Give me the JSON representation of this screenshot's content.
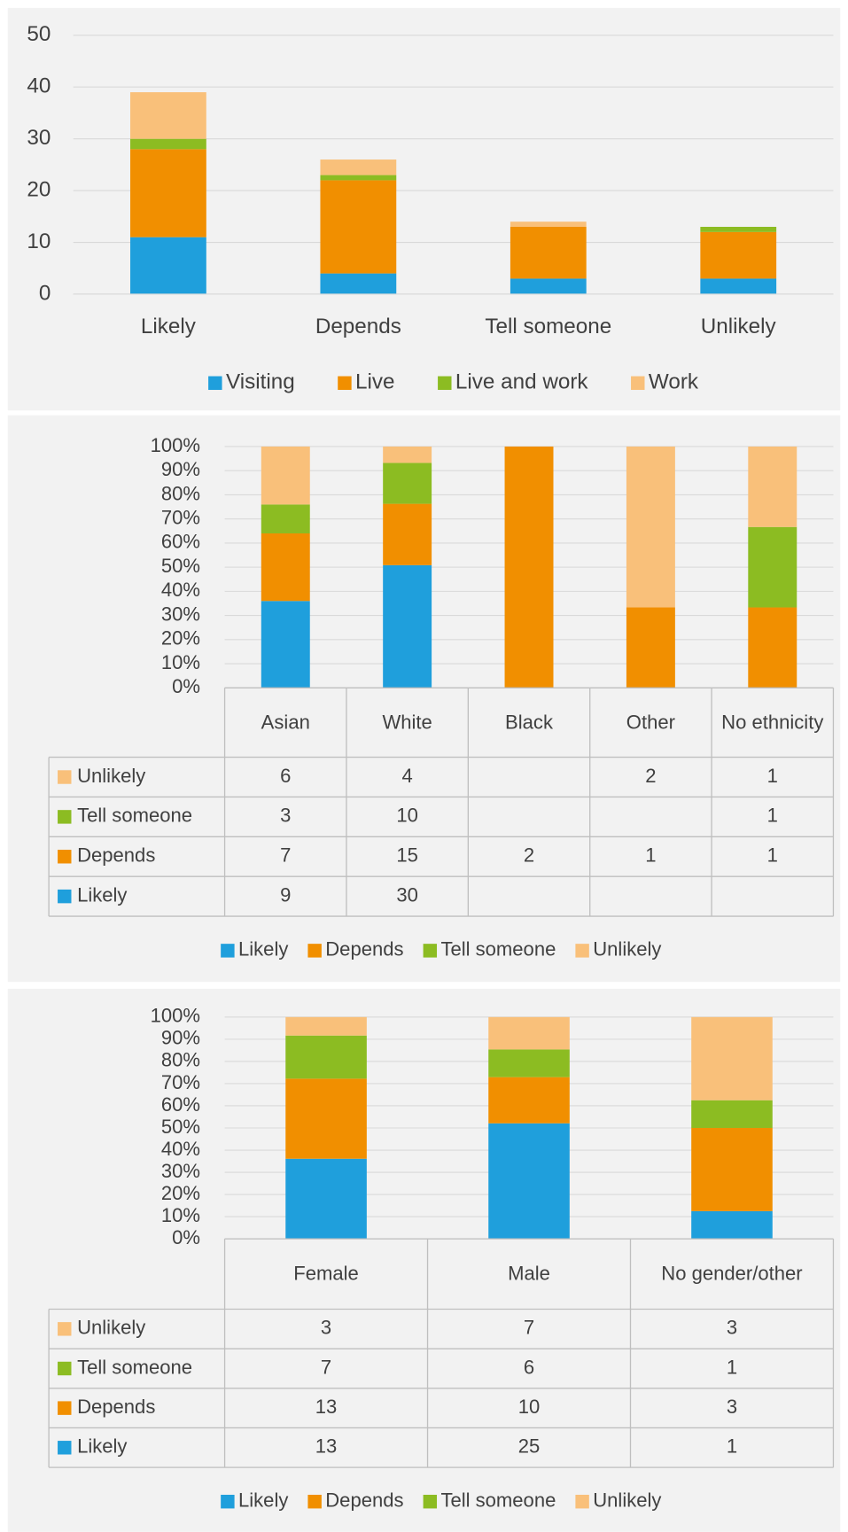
{
  "chart_data": [
    {
      "type": "bar",
      "stacked": "stacked",
      "categories": [
        "Likely",
        "Depends",
        "Tell someone",
        "Unlikely"
      ],
      "series": [
        {
          "name": "Visiting",
          "color": "#1f9fdc",
          "values": [
            11,
            4,
            3,
            3
          ]
        },
        {
          "name": "Live",
          "color": "#f18f00",
          "values": [
            17,
            18,
            10,
            9
          ]
        },
        {
          "name": "Live and work",
          "color": "#8cbc22",
          "values": [
            2,
            1,
            0,
            1
          ]
        },
        {
          "name": "Work",
          "color": "#f9c07a",
          "values": [
            9,
            3,
            1,
            0
          ]
        }
      ],
      "ylim": [
        0,
        50
      ],
      "yticks": [
        0,
        10,
        20,
        30,
        40,
        50
      ],
      "grid": true,
      "legend": "bottom"
    },
    {
      "type": "bar",
      "stacked": "percent",
      "data_table": true,
      "categories": [
        "Asian",
        "White",
        "Black",
        "Other",
        "No ethnicity"
      ],
      "series": [
        {
          "name": "Likely",
          "color": "#1f9fdc",
          "values": [
            9,
            30,
            null,
            null,
            null
          ]
        },
        {
          "name": "Depends",
          "color": "#f18f00",
          "values": [
            7,
            15,
            2,
            1,
            1
          ]
        },
        {
          "name": "Tell someone",
          "color": "#8cbc22",
          "values": [
            3,
            10,
            null,
            null,
            1
          ]
        },
        {
          "name": "Unlikely",
          "color": "#f9c07a",
          "values": [
            6,
            4,
            null,
            2,
            1
          ]
        }
      ],
      "ylim": [
        0,
        100
      ],
      "yticks": [
        {
          "value": 0,
          "label": "0%"
        },
        {
          "value": 10,
          "label": "10%"
        },
        {
          "value": 20,
          "label": "20%"
        },
        {
          "value": 30,
          "label": "30%"
        },
        {
          "value": 40,
          "label": "40%"
        },
        {
          "value": 50,
          "label": "50%"
        },
        {
          "value": 60,
          "label": "60%"
        },
        {
          "value": 70,
          "label": "70%"
        },
        {
          "value": 80,
          "label": "80%"
        },
        {
          "value": 90,
          "label": "90%"
        },
        {
          "value": 100,
          "label": "100%"
        }
      ],
      "grid": true,
      "legend": "bottom"
    },
    {
      "type": "bar",
      "stacked": "percent",
      "data_table": true,
      "categories": [
        "Female",
        "Male",
        "No gender/other"
      ],
      "series": [
        {
          "name": "Likely",
          "color": "#1f9fdc",
          "values": [
            13,
            25,
            1
          ]
        },
        {
          "name": "Depends",
          "color": "#f18f00",
          "values": [
            13,
            10,
            3
          ]
        },
        {
          "name": "Tell someone",
          "color": "#8cbc22",
          "values": [
            7,
            6,
            1
          ]
        },
        {
          "name": "Unlikely",
          "color": "#f9c07a",
          "values": [
            3,
            7,
            3
          ]
        }
      ],
      "ylim": [
        0,
        100
      ],
      "yticks": [
        {
          "value": 0,
          "label": "0%"
        },
        {
          "value": 10,
          "label": "10%"
        },
        {
          "value": 20,
          "label": "20%"
        },
        {
          "value": 30,
          "label": "30%"
        },
        {
          "value": 40,
          "label": "40%"
        },
        {
          "value": 50,
          "label": "50%"
        },
        {
          "value": 60,
          "label": "60%"
        },
        {
          "value": 70,
          "label": "70%"
        },
        {
          "value": 80,
          "label": "80%"
        },
        {
          "value": 90,
          "label": "90%"
        },
        {
          "value": 100,
          "label": "100%"
        }
      ],
      "grid": true,
      "legend": "bottom"
    }
  ]
}
